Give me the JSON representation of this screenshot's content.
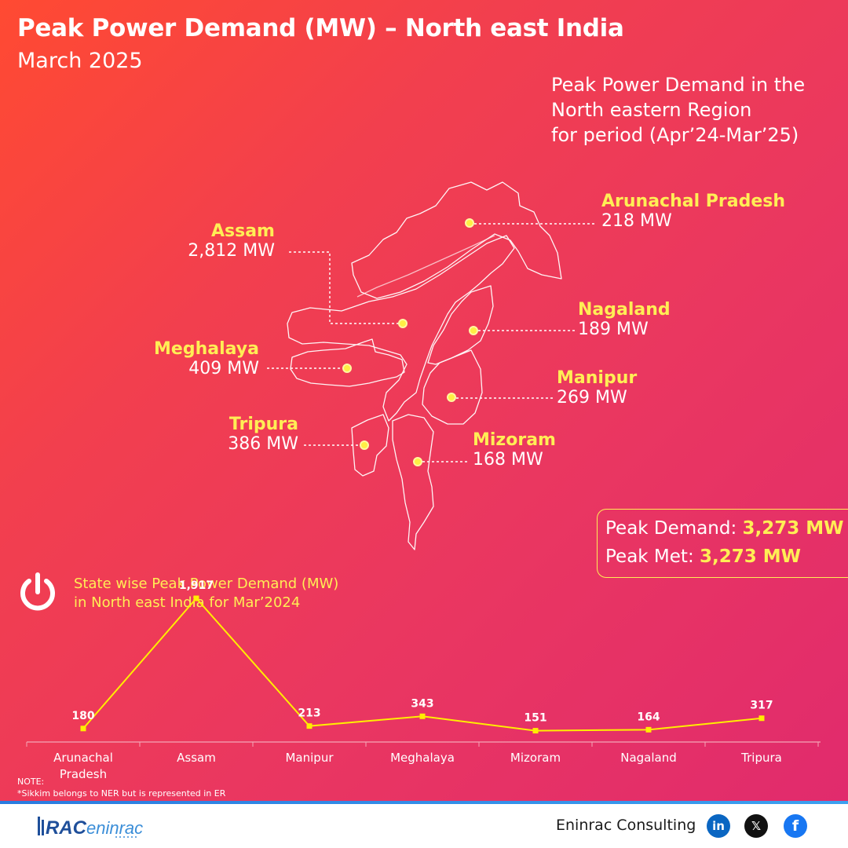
{
  "header": {
    "title": "Peak Power Demand (MW) – North east India",
    "subtitle": "March 2025"
  },
  "region_note": {
    "line1": "Peak Power Demand in the",
    "line2": "North eastern Region",
    "line3": "for period (Apr’24-Mar’25)"
  },
  "map_states": [
    {
      "name": "Arunachal Pradesh",
      "value": "218 MW"
    },
    {
      "name": "Assam",
      "value": "2,812 MW"
    },
    {
      "name": "Nagaland",
      "value": "189 MW"
    },
    {
      "name": "Meghalaya",
      "value": "409 MW"
    },
    {
      "name": "Manipur",
      "value": "269 MW"
    },
    {
      "name": "Tripura",
      "value": "386 MW"
    },
    {
      "name": "Mizoram",
      "value": "168 MW"
    }
  ],
  "peak": {
    "demand_label": "Peak Demand: ",
    "demand_value": "3,273 MW",
    "met_label": "Peak Met: ",
    "met_value": "3,273 MW"
  },
  "colors": {
    "accent": "#ffee55",
    "line": "#ffee00"
  },
  "chart_data": {
    "type": "line",
    "title_line1": "State wise Peak Power Demand (MW)",
    "title_line2": "in North east India for Mar’2024",
    "categories": [
      "Arunachal Pradesh",
      "Assam",
      "Manipur",
      "Meghalaya",
      "Mizoram",
      "Nagaland",
      "Tripura"
    ],
    "category_labels": [
      [
        "Arunachal",
        "Pradesh"
      ],
      [
        "Assam"
      ],
      [
        "Manipur"
      ],
      [
        "Meghalaya"
      ],
      [
        "Mizoram"
      ],
      [
        "Nagaland"
      ],
      [
        "Tripura"
      ]
    ],
    "values": [
      180,
      1917,
      213,
      343,
      151,
      164,
      317
    ],
    "data_labels": [
      "180",
      "1,917",
      "213",
      "343",
      "151",
      "164",
      "317"
    ],
    "ylim": [
      0,
      2200
    ],
    "grid": false,
    "xlabel": "",
    "ylabel": ""
  },
  "note": {
    "label": "NOTE:",
    "text": "*Sikkim belongs to NER but is represented in ER"
  },
  "footer": {
    "logo_text": "RAC eninrac",
    "company": "Eninrac Consulting",
    "social": [
      {
        "icon": "linkedin-icon",
        "glyph": "in"
      },
      {
        "icon": "x-icon",
        "glyph": "𝕏"
      },
      {
        "icon": "facebook-icon",
        "glyph": "f"
      }
    ]
  }
}
